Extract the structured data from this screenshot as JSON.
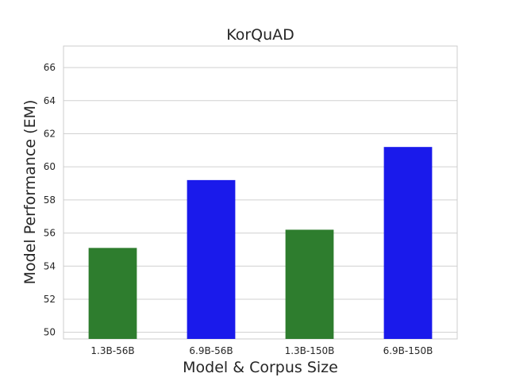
{
  "chart_data": {
    "type": "bar",
    "title": "KorQuAD",
    "xlabel": "Model & Corpus Size",
    "ylabel": "Model Performance (EM)",
    "categories": [
      "1.3B-56B",
      "6.9B-56B",
      "1.3B-150B",
      "6.9B-150B"
    ],
    "values": [
      55.1,
      59.2,
      56.2,
      61.2
    ],
    "colors": [
      "#2e7d2e",
      "#1a1aeb",
      "#2e7d2e",
      "#1a1aeb"
    ],
    "ylim": [
      49.6,
      67.3
    ],
    "yticks": [
      50,
      52,
      54,
      56,
      58,
      60,
      62,
      64,
      66
    ],
    "grid": true,
    "legend": "none"
  }
}
